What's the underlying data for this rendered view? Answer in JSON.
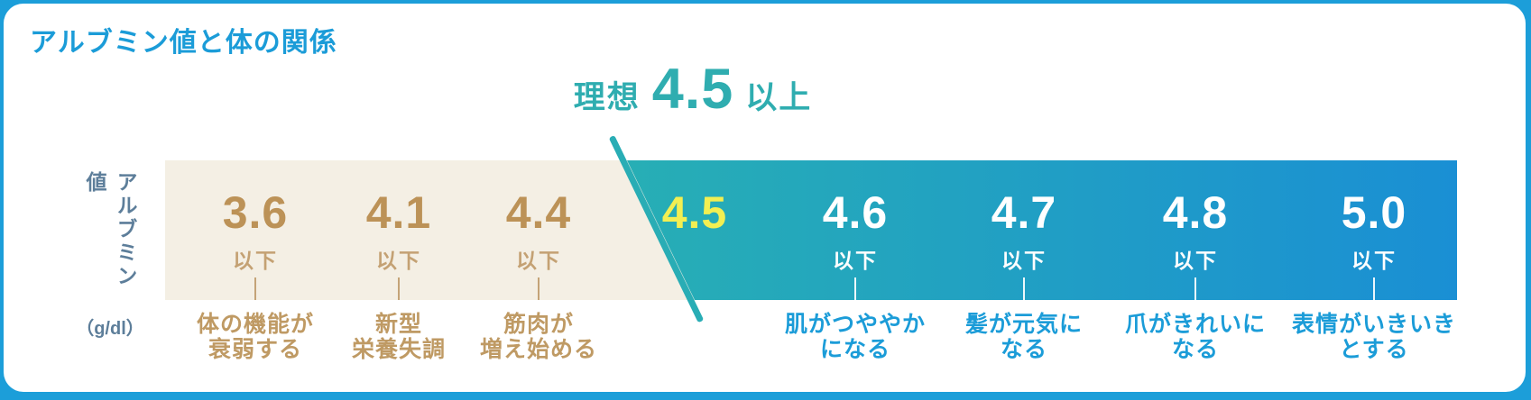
{
  "page": {
    "title": "アルブミン値と体の関係",
    "background_color": "#1c9ed9",
    "card_color": "#ffffff"
  },
  "ideal_callout": {
    "prefix": "理想",
    "value": "4.5",
    "suffix": "以上"
  },
  "y_axis": {
    "label": "アルブミン値",
    "unit": "（g/dl）"
  },
  "chart_data": {
    "type": "bar",
    "title": "アルブミン値と体の関係",
    "xlabel": "アルブミン値 (g/dl)",
    "annotation": "理想 4.5 以上",
    "ideal_threshold": "4.5",
    "legend_position": "none",
    "grid": false,
    "categories": [
      "3.6以下",
      "4.1以下",
      "4.4以下",
      "4.5",
      "4.6以下",
      "4.7以下",
      "4.8以下",
      "5.0以下"
    ],
    "segments": [
      {
        "value": "3.6",
        "qualifier": "以下",
        "zone": "low",
        "description": [
          "体の機能が",
          "衰弱する"
        ]
      },
      {
        "value": "4.1",
        "qualifier": "以下",
        "zone": "low",
        "description": [
          "新型",
          "栄養失調"
        ]
      },
      {
        "value": "4.4",
        "qualifier": "以下",
        "zone": "low",
        "description": [
          "筋肉が",
          "増え始める"
        ]
      },
      {
        "value": "4.5",
        "qualifier": "",
        "zone": "ideal",
        "description": []
      },
      {
        "value": "4.6",
        "qualifier": "以下",
        "zone": "high",
        "description": [
          "肌がつややか",
          "になる"
        ]
      },
      {
        "value": "4.7",
        "qualifier": "以下",
        "zone": "high",
        "description": [
          "髪が元気に",
          "なる"
        ]
      },
      {
        "value": "4.8",
        "qualifier": "以下",
        "zone": "high",
        "description": [
          "爪がきれいに",
          "なる"
        ]
      },
      {
        "value": "5.0",
        "qualifier": "以下",
        "zone": "high",
        "description": [
          "表情がいきいき",
          "とする"
        ]
      }
    ]
  },
  "colors": {
    "title_blue": "#1b9cd8",
    "ideal_teal": "#2fadb0",
    "low_zone_beige": "#f4efe4",
    "ideal_zone_teal": "#27aeb5",
    "high_zone_blue": "#1a8fd4",
    "low_text_brown": "#bf9a64",
    "ideal_value_yellow": "#f2ef52",
    "high_text_white": "#ffffff",
    "high_desc_blue": "#1b9cd8",
    "axis_label_slate": "#5d7e9a",
    "divider_teal": "#29adb5"
  }
}
